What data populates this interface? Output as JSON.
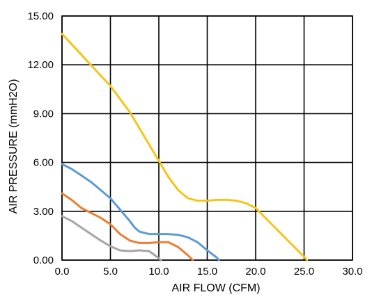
{
  "chart_data": {
    "type": "line",
    "title": "",
    "xlabel": "AIR FLOW   (CFM)",
    "ylabel": "AIR PRESSURE   (mmH2O)",
    "xlim": [
      0,
      30
    ],
    "ylim": [
      0,
      15
    ],
    "x_ticks": [
      "0.0",
      "5.0",
      "10.0",
      "15.0",
      "20.0",
      "25.0",
      "30.0"
    ],
    "y_ticks": [
      "0.00",
      "3.00",
      "6.00",
      "9.00",
      "12.00",
      "15.00"
    ],
    "grid": true,
    "legend": "none",
    "series": [
      {
        "color": "#f5c518",
        "points": [
          [
            0,
            13.9
          ],
          [
            2.5,
            12.3
          ],
          [
            5,
            10.7
          ],
          [
            7,
            9.1
          ],
          [
            9,
            7.1
          ],
          [
            10,
            6.1
          ],
          [
            11,
            5.1
          ],
          [
            12,
            4.3
          ],
          [
            13,
            3.8
          ],
          [
            14,
            3.65
          ],
          [
            15,
            3.65
          ],
          [
            16,
            3.7
          ],
          [
            17,
            3.7
          ],
          [
            18,
            3.65
          ],
          [
            19,
            3.5
          ],
          [
            20,
            3.2
          ],
          [
            21,
            2.6
          ],
          [
            22,
            2.0
          ],
          [
            23,
            1.4
          ],
          [
            24,
            0.8
          ],
          [
            25,
            0.2
          ],
          [
            25.3,
            0
          ]
        ]
      },
      {
        "color": "#5b9bd5",
        "points": [
          [
            0,
            5.9
          ],
          [
            1,
            5.6
          ],
          [
            2,
            5.2
          ],
          [
            3,
            4.8
          ],
          [
            4,
            4.3
          ],
          [
            5,
            3.8
          ],
          [
            6,
            3.1
          ],
          [
            7,
            2.4
          ],
          [
            7.5,
            2.0
          ],
          [
            8,
            1.75
          ],
          [
            9,
            1.6
          ],
          [
            10,
            1.6
          ],
          [
            11,
            1.6
          ],
          [
            12,
            1.55
          ],
          [
            13,
            1.4
          ],
          [
            14,
            1.1
          ],
          [
            15,
            0.6
          ],
          [
            16,
            0.15
          ],
          [
            16.2,
            0
          ]
        ]
      },
      {
        "color": "#ed7d31",
        "points": [
          [
            0,
            4.1
          ],
          [
            1,
            3.7
          ],
          [
            2,
            3.2
          ],
          [
            3,
            2.9
          ],
          [
            4,
            2.6
          ],
          [
            5,
            2.2
          ],
          [
            6,
            1.6
          ],
          [
            7,
            1.2
          ],
          [
            8,
            1.05
          ],
          [
            9,
            1.05
          ],
          [
            10,
            1.1
          ],
          [
            11,
            1.1
          ],
          [
            12,
            0.8
          ],
          [
            13,
            0.3
          ],
          [
            13.5,
            0
          ]
        ]
      },
      {
        "color": "#a5a5a5",
        "points": [
          [
            0,
            2.7
          ],
          [
            1,
            2.4
          ],
          [
            2,
            2.0
          ],
          [
            3,
            1.6
          ],
          [
            4,
            1.2
          ],
          [
            5,
            0.85
          ],
          [
            6,
            0.6
          ],
          [
            7,
            0.55
          ],
          [
            8,
            0.6
          ],
          [
            9,
            0.55
          ],
          [
            9.7,
            0.25
          ],
          [
            10.2,
            0
          ]
        ]
      }
    ]
  }
}
